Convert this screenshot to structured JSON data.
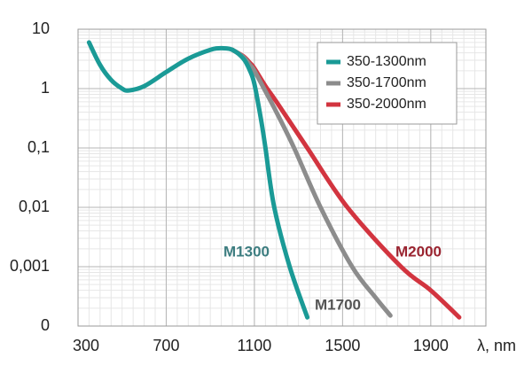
{
  "chart_data": {
    "type": "line",
    "x_label": "λ, nm",
    "log_y": true,
    "grid": true,
    "legend": "upper right",
    "xlim": [
      300,
      2150
    ],
    "xticks": [
      300,
      700,
      1100,
      1500,
      1900
    ],
    "ylim": [
      0.0001,
      10
    ],
    "yticks": [
      {
        "value": 0.0001,
        "label": "0"
      },
      {
        "value": 0.001,
        "label": "0,001"
      },
      {
        "value": 0.01,
        "label": "0,01"
      },
      {
        "value": 0.1,
        "label": "0,1"
      },
      1,
      10
    ],
    "series": [
      {
        "name": "350-1300nm",
        "color": "#1a9a96",
        "x": [
          350,
          400,
          450,
          500,
          530,
          600,
          700,
          800,
          900,
          950,
          1000,
          1050,
          1080,
          1100,
          1130,
          1150,
          1190,
          1260,
          1340
        ],
        "values": [
          6,
          2.5,
          1.4,
          1.0,
          0.93,
          1.1,
          1.9,
          3.2,
          4.5,
          4.8,
          4.5,
          3.2,
          2,
          1.2,
          0.3,
          0.1,
          0.01,
          0.001,
          0.00014
        ]
      },
      {
        "name": "350-1700nm",
        "color": "#8c8c8c",
        "x": [
          1000,
          1050,
          1080,
          1100,
          1150,
          1200,
          1280,
          1400,
          1543,
          1650,
          1717
        ],
        "values": [
          4.5,
          3.4,
          2.5,
          2,
          0.9,
          0.4,
          0.1,
          0.01,
          0.001,
          0.0003,
          0.00015
        ]
      },
      {
        "name": "350-2000nm",
        "color": "#d2343f",
        "x": [
          1000,
          1050,
          1080,
          1100,
          1150,
          1200,
          1340,
          1522,
          1765,
          1900,
          2029
        ],
        "values": [
          4.5,
          3.5,
          2.7,
          2.2,
          1.1,
          0.6,
          0.1,
          0.01,
          0.001,
          0.0004,
          0.00014
        ]
      }
    ],
    "annotations": [
      {
        "text": "M1300",
        "color": "#3d7d80"
      },
      {
        "text": "M1700",
        "color": "#555555"
      },
      {
        "text": "M2000",
        "color": "#9a2430"
      }
    ]
  }
}
